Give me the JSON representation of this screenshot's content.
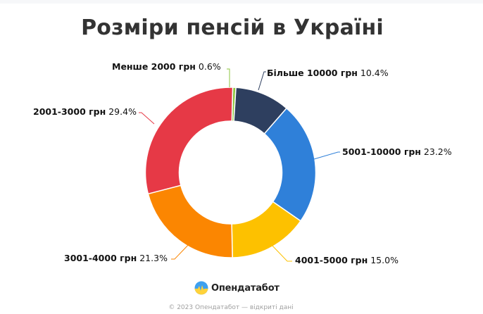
{
  "title": "Розміри пенсій в Україні",
  "chart_data": {
    "type": "pie",
    "subtype": "donut",
    "title": "Розміри пенсій в Україні",
    "categories": [
      "Менше 2000 грн",
      "Більше 10000 грн",
      "5001-10000 грн",
      "4001-5000 грн",
      "3001-4000 грн",
      "2001-3000 грн"
    ],
    "values": [
      0.6,
      10.4,
      23.2,
      15.0,
      21.3,
      29.4
    ],
    "unit": "%",
    "colors": [
      "#8dc63f",
      "#2e3f5f",
      "#2f80d9",
      "#fdc100",
      "#fb8601",
      "#e63946"
    ],
    "legend": "none (outside data labels with leader lines)"
  },
  "labels": [
    {
      "name": "Менше 2000 грн",
      "pct": "0.6%"
    },
    {
      "name": "Більше 10000 грн",
      "pct": "10.4%"
    },
    {
      "name": "5001-10000 грн",
      "pct": "23.2%"
    },
    {
      "name": "4001-5000 грн",
      "pct": "15.0%"
    },
    {
      "name": "3001-4000 грн",
      "pct": "21.3%"
    },
    {
      "name": "2001-3000 грн",
      "pct": "29.4%"
    }
  ],
  "brand": {
    "name": "Опендатабот",
    "logo_icon": "opendatabot-logo-icon"
  },
  "footer": "© 2023 Опендатабот — відкриті дані"
}
